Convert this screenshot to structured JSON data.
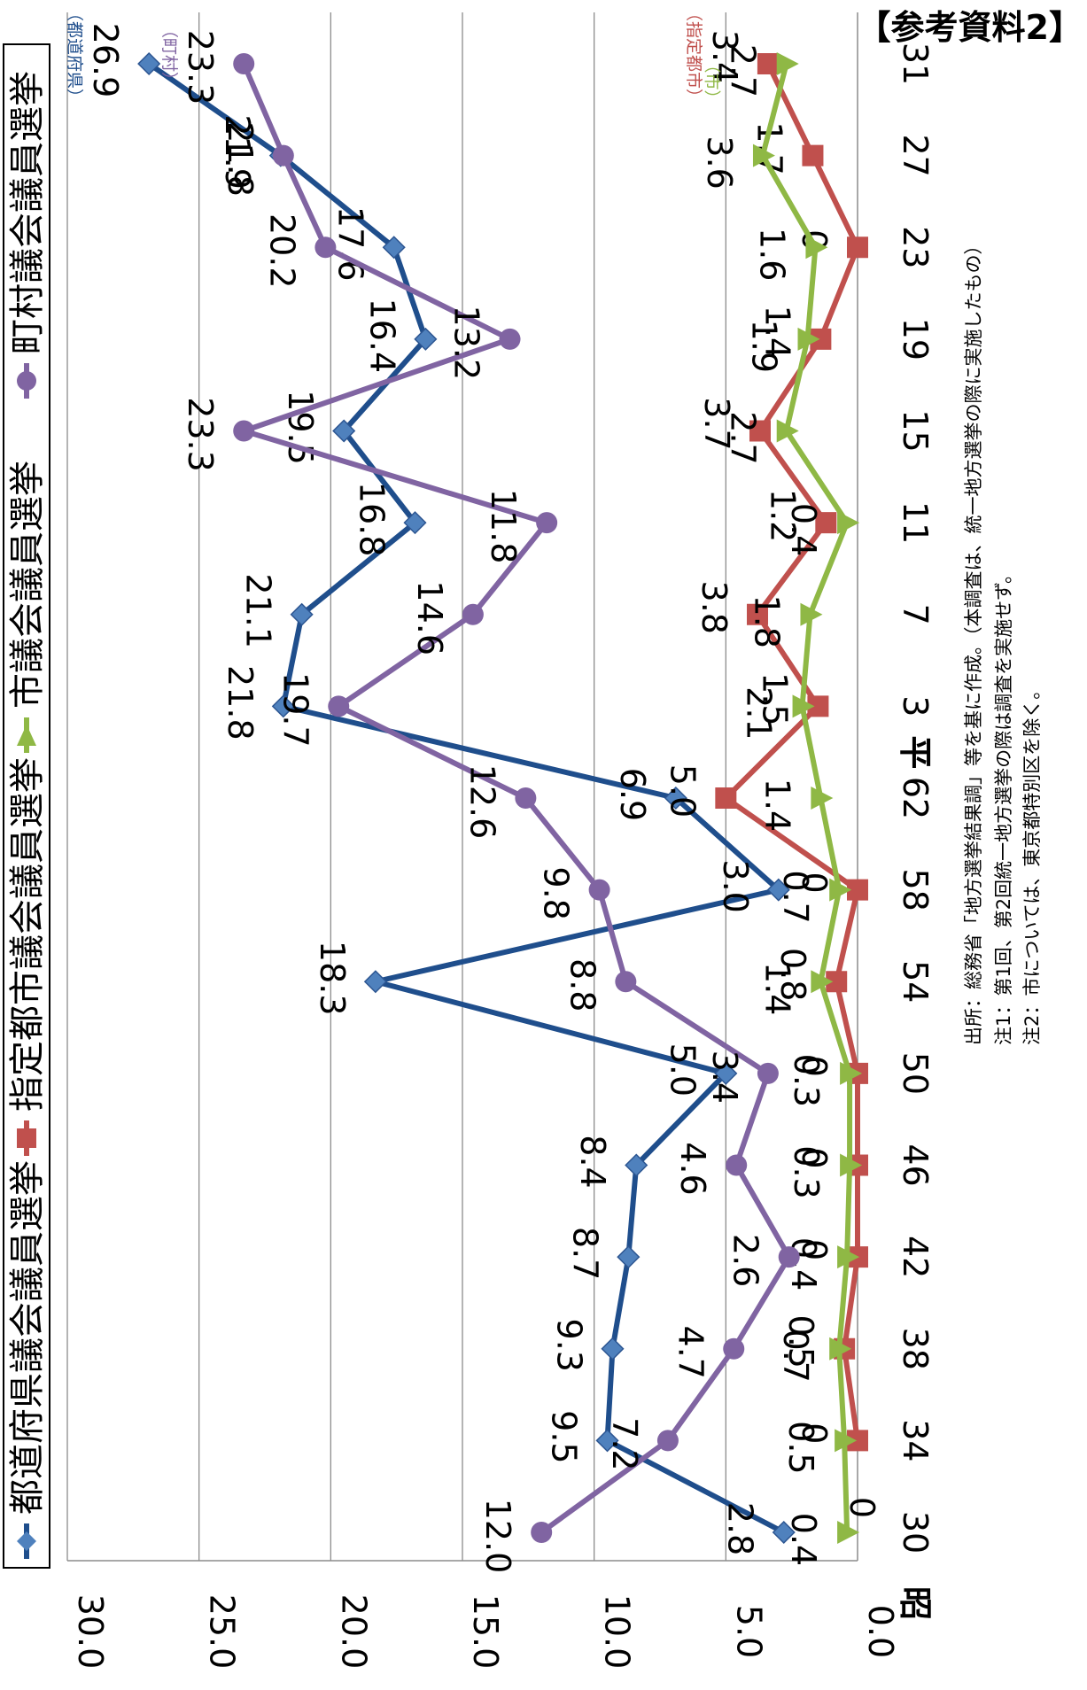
{
  "reference_label": "【参考資料2】",
  "notes": [
    "出所：総務省「地方選挙結果調」等を基に作成。（本調査は、統一地方選挙の際に実施したもの）",
    "注1：第1回、第2回統一地方選挙の際は調査を実施せず。",
    "注2：市については、東京都特別区を除く。"
  ],
  "chart_data": {
    "type": "line",
    "orientation": "rotated-90",
    "title": "",
    "xlabel": "",
    "ylabel": "",
    "ylim": [
      0,
      30
    ],
    "y_ticks": [
      "0.0",
      "5.0",
      "10.0",
      "15.0",
      "20.0",
      "25.0",
      "30.0"
    ],
    "grid": true,
    "legend_position": "top",
    "era_labels": [
      {
        "text": "昭",
        "at": "30"
      },
      {
        "text": "平",
        "at": "3"
      }
    ],
    "categories": [
      "30",
      "34",
      "38",
      "42",
      "46",
      "50",
      "54",
      "58",
      "62",
      "3",
      "7",
      "11",
      "15",
      "19",
      "23",
      "27",
      "31"
    ],
    "series": [
      {
        "name": "都道府県議会議員選挙",
        "tag": "（都道府県）",
        "color": "#1f4e8c",
        "marker": "diamond",
        "values": [
          2.8,
          9.5,
          9.3,
          8.7,
          8.4,
          5.0,
          18.3,
          3.0,
          6.9,
          21.8,
          21.1,
          16.8,
          19.5,
          16.4,
          17.6,
          21.9,
          26.9
        ]
      },
      {
        "name": "指定都市議会議員選挙",
        "tag": "（指定都市）",
        "color": "#c0504d",
        "marker": "square",
        "values": [
          null,
          0,
          0.5,
          0,
          0,
          0,
          0.8,
          0,
          5.0,
          1.5,
          3.8,
          1.2,
          3.7,
          1.4,
          0,
          1.7,
          3.4
        ]
      },
      {
        "name": "市議会議員選挙",
        "tag": "（市）",
        "color": "#8fb845",
        "marker": "triangle",
        "values": [
          0.4,
          0.5,
          0.7,
          0.4,
          0.3,
          0.3,
          1.4,
          0.7,
          1.4,
          2.1,
          1.8,
          0.4,
          2.7,
          1.9,
          1.6,
          3.6,
          2.7
        ]
      },
      {
        "name": "町村議会議員選挙",
        "tag": "（町村）",
        "color": "#8064a2",
        "marker": "circle",
        "values": [
          12.0,
          7.2,
          4.7,
          2.6,
          4.6,
          3.4,
          8.8,
          9.8,
          12.6,
          19.7,
          14.6,
          11.8,
          23.3,
          13.2,
          20.2,
          21.8,
          23.3
        ]
      }
    ],
    "tail_zero_label": {
      "at": "30",
      "text": "0"
    }
  }
}
